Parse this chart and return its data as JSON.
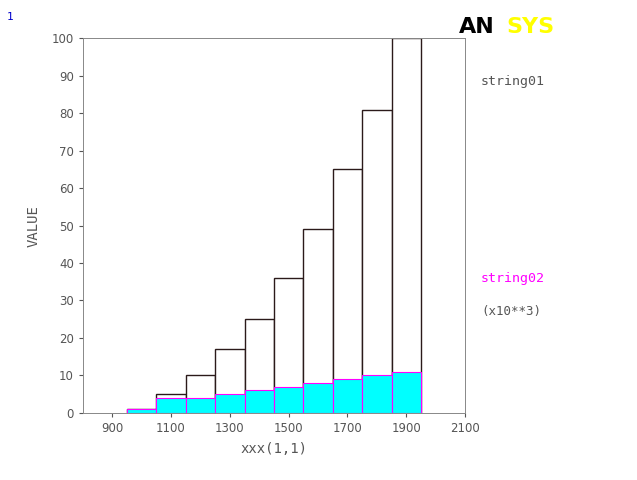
{
  "title": "",
  "xlabel": "xxx(1,1)",
  "ylabel": "VALUE",
  "xlim": [
    800,
    2100
  ],
  "ylim": [
    0,
    100
  ],
  "xticks": [
    900,
    1100,
    1300,
    1500,
    1700,
    1900,
    2100
  ],
  "yticks": [
    0,
    10,
    20,
    30,
    40,
    50,
    60,
    70,
    80,
    90,
    100
  ],
  "bar_edges": [
    950,
    1050,
    1150,
    1250,
    1350,
    1450,
    1550,
    1650,
    1750,
    1850,
    1950
  ],
  "values_s01": [
    1,
    5,
    10,
    17,
    25,
    36,
    49,
    65,
    81,
    100
  ],
  "values_s02": [
    1,
    4,
    4,
    5,
    6,
    7,
    8,
    9,
    10,
    11
  ],
  "color_s01_fill": "#ffffff",
  "color_s01_edge": "#2b1a1a",
  "color_s02_fill": "#00ffff",
  "color_s02_edge": "#ff00ff",
  "label_s01": "string01",
  "label_s02": "string02",
  "legend_x_label": "(x10**3)",
  "background_color": "#ffffff",
  "plot_bg_color": "#ffffff",
  "ansys_black": "AN",
  "ansys_yellow": "SYS",
  "corner_number": "1",
  "tick_color": "#555555",
  "s01_label_color": "#555555",
  "s02_label_color": "#ff00ff",
  "legend_label_color": "#555555"
}
